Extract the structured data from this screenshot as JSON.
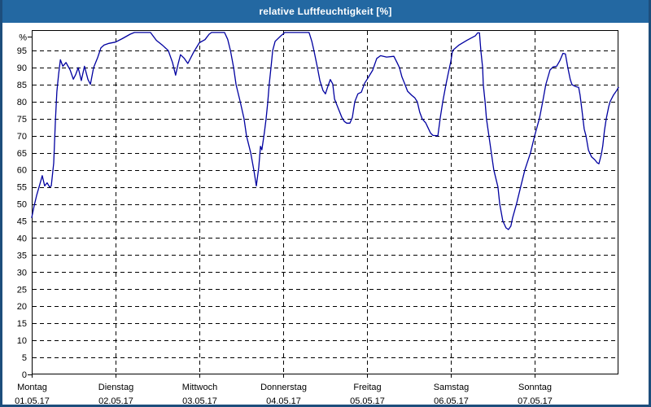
{
  "window": {
    "title": "relative Luftfeuchtigkeit [%]"
  },
  "colors": {
    "titlebar": "#2368A2",
    "window_border": "#1D4E7C",
    "line": "#0000A0",
    "grid": "#000000",
    "background": "#FFFFFF"
  },
  "chart_data": {
    "type": "line",
    "title": "relative Luftfeuchtigkeit [%]",
    "ylabel": "%",
    "y_unit_label": "%",
    "ylim": [
      0,
      101
    ],
    "y_ticks": [
      0,
      5,
      10,
      15,
      20,
      25,
      30,
      35,
      40,
      45,
      50,
      55,
      60,
      65,
      70,
      75,
      80,
      85,
      90,
      95
    ],
    "grid": "dashed",
    "legend_position": "none",
    "x_axis": {
      "range_hours": [
        0,
        168
      ],
      "hours_per_day": 24,
      "days": [
        {
          "name": "Montag",
          "date": "01.05.17"
        },
        {
          "name": "Dienstag",
          "date": "02.05.17"
        },
        {
          "name": "Mittwoch",
          "date": "03.05.17"
        },
        {
          "name": "Donnerstag",
          "date": "04.05.17"
        },
        {
          "name": "Freitag",
          "date": "05.05.17"
        },
        {
          "name": "Samstag",
          "date": "06.05.17"
        },
        {
          "name": "Sonntag",
          "date": "07.05.17"
        }
      ]
    },
    "series": [
      {
        "name": "relative Luftfeuchtigkeit",
        "unit": "%",
        "points_hours_percent": [
          [
            0,
            46
          ],
          [
            0.7,
            49.5
          ],
          [
            1.4,
            52.5
          ],
          [
            2.1,
            55
          ],
          [
            2.8,
            57.5
          ],
          [
            3,
            58.3
          ],
          [
            3.7,
            55.3
          ],
          [
            4.4,
            56.2
          ],
          [
            5.1,
            55
          ],
          [
            5.6,
            55.3
          ],
          [
            6.3,
            62
          ],
          [
            6.8,
            75
          ],
          [
            7.2,
            83
          ],
          [
            7.7,
            88
          ],
          [
            8.2,
            92.3
          ],
          [
            8.9,
            90.4
          ],
          [
            9.8,
            91.5
          ],
          [
            11,
            89.3
          ],
          [
            11.9,
            86.6
          ],
          [
            12.6,
            88
          ],
          [
            13.3,
            90
          ],
          [
            14.2,
            86.2
          ],
          [
            15.1,
            90.4
          ],
          [
            16.1,
            86.5
          ],
          [
            16.8,
            85.1
          ],
          [
            17.7,
            90
          ],
          [
            18.9,
            93
          ],
          [
            19.8,
            95.8
          ],
          [
            20.7,
            96.6
          ],
          [
            22.1,
            97.1
          ],
          [
            24,
            97.5
          ],
          [
            25.9,
            98.5
          ],
          [
            28.2,
            99.8
          ],
          [
            29.4,
            100.3
          ],
          [
            34,
            100.3
          ],
          [
            35.7,
            98
          ],
          [
            37.5,
            96.5
          ],
          [
            39.1,
            95
          ],
          [
            40.3,
            91.5
          ],
          [
            41.2,
            87.8
          ],
          [
            41.9,
            91
          ],
          [
            42.6,
            93.8
          ],
          [
            43.6,
            92.8
          ],
          [
            44.7,
            91.2
          ],
          [
            46.4,
            94.6
          ],
          [
            48,
            97.3
          ],
          [
            49.6,
            98.2
          ],
          [
            50.8,
            99.8
          ],
          [
            51.5,
            100.3
          ],
          [
            55.2,
            100.3
          ],
          [
            56.1,
            98.3
          ],
          [
            56.9,
            95
          ],
          [
            57.8,
            90
          ],
          [
            58.5,
            85
          ],
          [
            59.7,
            80
          ],
          [
            60.8,
            75
          ],
          [
            61.5,
            70
          ],
          [
            62.7,
            65
          ],
          [
            63.6,
            60
          ],
          [
            64.3,
            55.3
          ],
          [
            65,
            60.8
          ],
          [
            65.5,
            66.9
          ],
          [
            65.9,
            65.9
          ],
          [
            66.6,
            70.8
          ],
          [
            67.1,
            75
          ],
          [
            67.6,
            80
          ],
          [
            68,
            85
          ],
          [
            68.5,
            90
          ],
          [
            69,
            95
          ],
          [
            69.7,
            97.7
          ],
          [
            71.3,
            99.3
          ],
          [
            72.5,
            100.3
          ],
          [
            79.4,
            100.3
          ],
          [
            80.2,
            97.7
          ],
          [
            80.8,
            95
          ],
          [
            81.8,
            90
          ],
          [
            82.5,
            86.2
          ],
          [
            83.4,
            83.3
          ],
          [
            84.1,
            82.3
          ],
          [
            84.8,
            84.5
          ],
          [
            85.5,
            86.5
          ],
          [
            86.2,
            85.2
          ],
          [
            86.7,
            80.8
          ],
          [
            87.6,
            78.5
          ],
          [
            88.8,
            75.4
          ],
          [
            89.5,
            74.2
          ],
          [
            90.2,
            73.7
          ],
          [
            91.1,
            73.7
          ],
          [
            91.8,
            75.4
          ],
          [
            92.5,
            80
          ],
          [
            93.4,
            82.3
          ],
          [
            94.4,
            82.8
          ],
          [
            95.3,
            85.4
          ],
          [
            96,
            86.5
          ],
          [
            97.6,
            89.2
          ],
          [
            98.8,
            92.7
          ],
          [
            99.9,
            93.5
          ],
          [
            101.6,
            93.1
          ],
          [
            103.7,
            93.3
          ],
          [
            104.6,
            91.5
          ],
          [
            105.3,
            90
          ],
          [
            106,
            87.3
          ],
          [
            106.9,
            85
          ],
          [
            107.6,
            83.1
          ],
          [
            108.8,
            81.9
          ],
          [
            109.7,
            81.1
          ],
          [
            110.4,
            80
          ],
          [
            111.1,
            76.9
          ],
          [
            111.8,
            75
          ],
          [
            112.8,
            73.8
          ],
          [
            113.5,
            72.3
          ],
          [
            114.2,
            70.8
          ],
          [
            114.9,
            70.1
          ],
          [
            116.3,
            70
          ],
          [
            117,
            75.4
          ],
          [
            117.7,
            80
          ],
          [
            118.6,
            85
          ],
          [
            119.3,
            88.5
          ],
          [
            120,
            91.8
          ],
          [
            120.5,
            95
          ],
          [
            122.3,
            96.6
          ],
          [
            124.6,
            98
          ],
          [
            127,
            99.3
          ],
          [
            127.7,
            100.2
          ],
          [
            128.2,
            100.2
          ],
          [
            128.6,
            95
          ],
          [
            129.1,
            90
          ],
          [
            129.3,
            85
          ],
          [
            129.8,
            80
          ],
          [
            130.2,
            75
          ],
          [
            130.9,
            70
          ],
          [
            131.6,
            65
          ],
          [
            132.3,
            60
          ],
          [
            133.5,
            55
          ],
          [
            134,
            50
          ],
          [
            134.9,
            45
          ],
          [
            135.8,
            43
          ],
          [
            136.5,
            42.5
          ],
          [
            137.2,
            43.5
          ],
          [
            137.7,
            46
          ],
          [
            138.8,
            50
          ],
          [
            140,
            55
          ],
          [
            141.2,
            60
          ],
          [
            142.8,
            65
          ],
          [
            144,
            70
          ],
          [
            145.4,
            75.2
          ],
          [
            146.3,
            80
          ],
          [
            147.2,
            85
          ],
          [
            148.4,
            89.3
          ],
          [
            149.3,
            90.2
          ],
          [
            150.3,
            90.4
          ],
          [
            151.2,
            92
          ],
          [
            152.1,
            94.2
          ],
          [
            152.8,
            94
          ],
          [
            153.5,
            90
          ],
          [
            154.2,
            86.5
          ],
          [
            154.7,
            85
          ],
          [
            155.6,
            84.5
          ],
          [
            156.6,
            84.2
          ],
          [
            157,
            82
          ],
          [
            157.5,
            78
          ],
          [
            158.2,
            72
          ],
          [
            158.7,
            70
          ],
          [
            159.4,
            65.8
          ],
          [
            160.3,
            63.8
          ],
          [
            161.2,
            63
          ],
          [
            161.9,
            62.1
          ],
          [
            162.4,
            61.8
          ],
          [
            163.1,
            64.6
          ],
          [
            163.5,
            67
          ],
          [
            164,
            71.5
          ],
          [
            164.5,
            75
          ],
          [
            165.2,
            78.5
          ],
          [
            165.6,
            80
          ],
          [
            166.6,
            82
          ],
          [
            167.3,
            83
          ],
          [
            168,
            84.2
          ]
        ]
      }
    ]
  }
}
